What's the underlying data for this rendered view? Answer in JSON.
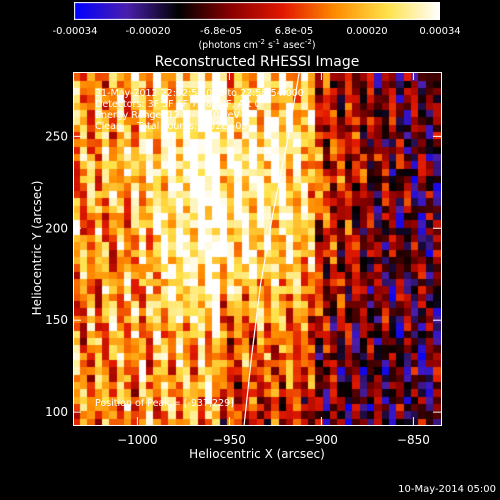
{
  "colorbar": {
    "tick_labels": [
      "-0.00034",
      "-0.00020",
      "-6.8e-05",
      "6.8e-05",
      "0.00020",
      "0.00034"
    ],
    "tick_values": [
      -0.00034,
      -0.0002,
      -6.8e-05,
      6.8e-05,
      0.0002,
      0.00034
    ],
    "unit_parts": [
      "(photons cm",
      "-2",
      " s",
      "-1",
      " asec",
      "-2",
      ")"
    ],
    "colormap_stops": [
      "#0000ff",
      "#4b1fae",
      "#000000",
      "#8a0000",
      "#e21800",
      "#ff8c00",
      "#ffe24a",
      "#ffffff"
    ]
  },
  "chart_data": {
    "type": "heatmap",
    "title": "Reconstructed RHESSI Image",
    "xlabel": "Heliocentric X (arcsec)",
    "ylabel": "Heliocentric Y (arcsec)",
    "xlim": [
      -1035,
      -835
    ],
    "ylim": [
      93,
      285
    ],
    "x_ticks": [
      -1000,
      -950,
      -900,
      -850
    ],
    "x_tick_labels": [
      "−1000",
      "−950",
      "−900",
      "−850"
    ],
    "y_ticks": [
      100,
      150,
      200,
      250
    ],
    "y_tick_labels": [
      "100",
      "150",
      "200",
      "250"
    ],
    "value_range": [
      -0.00034,
      0.00034
    ],
    "pixel_size_arcsec": 4,
    "grid": false,
    "annotations": [
      "31-May-2012 22:52:54.000 to 22:58:54.000",
      "Detectors: 3F 5F 6F 7F 8F 9F, Att 0",
      "Energy Range: 12.0 - 25.0 keV",
      "Clean     Total counts: 6.52E+03"
    ],
    "peak_label": "Position of Peak = [-937,229]",
    "peak_position": [
      -937,
      229
    ],
    "limb_curve": [
      [
        -942,
        93
      ],
      [
        -938,
        130
      ],
      [
        -933,
        170
      ],
      [
        -926,
        210
      ],
      [
        -918,
        250
      ],
      [
        -912,
        285
      ]
    ]
  },
  "footer": {
    "timestamp": "10-May-2014 05:00"
  }
}
